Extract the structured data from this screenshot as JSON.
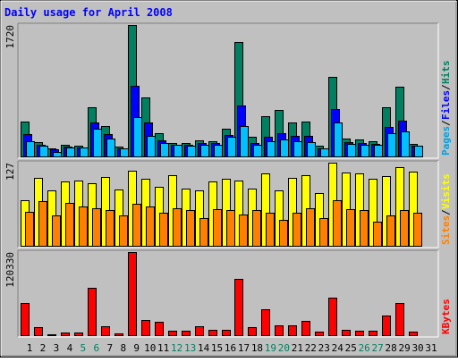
{
  "chart_data": {
    "type": "bar",
    "title": "Daily usage for April 2008",
    "categories": [
      "1",
      "2",
      "3",
      "4",
      "5",
      "6",
      "7",
      "8",
      "9",
      "10",
      "11",
      "12",
      "13",
      "14",
      "15",
      "16",
      "17",
      "18",
      "19",
      "20",
      "21",
      "22",
      "23",
      "24",
      "25",
      "26",
      "27",
      "28",
      "29",
      "30",
      "31"
    ],
    "weekend_days": [
      "5",
      "6",
      "12",
      "13",
      "19",
      "20",
      "26",
      "27"
    ],
    "panels": [
      {
        "id": "hits",
        "ymax_label": "1720",
        "ymax": 1720,
        "axis_labels": [
          {
            "text": "Pages",
            "color": "#00a0e0"
          },
          {
            "text": "Files",
            "color": "#0000ff"
          },
          {
            "text": "Hits",
            "color": "#008060"
          }
        ],
        "series": [
          {
            "name": "Hits",
            "color": "#008060",
            "values": [
              460,
              190,
              110,
              150,
              140,
              640,
              400,
              130,
              1720,
              770,
              310,
              180,
              170,
              210,
              200,
              360,
              1500,
              260,
              530,
              610,
              450,
              460,
              140,
              1040,
              230,
              220,
              200,
              640,
              910,
              160,
              0
            ]
          },
          {
            "name": "Files",
            "color": "#0000ff",
            "values": [
              290,
              150,
              90,
              130,
              120,
              450,
              290,
              110,
              920,
              440,
              210,
              150,
              150,
              170,
              170,
              280,
              670,
              180,
              260,
              310,
              270,
              270,
              110,
              620,
              190,
              180,
              160,
              390,
              470,
              140,
              0
            ]
          },
          {
            "name": "Pages",
            "color": "#00c0ff",
            "values": [
              200,
              140,
              60,
              120,
              120,
              360,
              230,
              100,
              520,
              270,
              170,
              150,
              140,
              150,
              150,
              260,
              400,
              150,
              200,
              220,
              200,
              190,
              100,
              440,
              160,
              150,
              150,
              300,
              330,
              140,
              0
            ]
          }
        ]
      },
      {
        "id": "visits",
        "ymax_label": "127",
        "ymax": 127,
        "axis_labels": [
          {
            "text": "Sites",
            "color": "#ff8000"
          },
          {
            "text": "Visits",
            "color": "#ffff00"
          }
        ],
        "series": [
          {
            "name": "Visits",
            "color": "#ffff00",
            "values": [
              70,
              104,
              85,
              98,
              100,
              95,
              105,
              86,
              115,
              102,
              90,
              108,
              88,
              85,
              98,
              102,
              100,
              88,
              110,
              84,
              104,
              108,
              80,
              127,
              112,
              110,
              103,
              106,
              120,
              114,
              0
            ]
          },
          {
            "name": "Sites",
            "color": "#ff8000",
            "values": [
              52,
              68,
              47,
              66,
              60,
              57,
              55,
              47,
              64,
              60,
              50,
              57,
              54,
              42,
              56,
              55,
              48,
              55,
              50,
              39,
              50,
              58,
              43,
              69,
              56,
              54,
              37,
              46,
              55,
              51,
              0
            ]
          }
        ]
      },
      {
        "id": "kbytes",
        "ymax_label": "120330",
        "ymax": 120330,
        "axis_labels": [
          {
            "text": "KBytes",
            "color": "#ff0000"
          }
        ],
        "series": [
          {
            "name": "KBytes",
            "color": "#ff0000",
            "values": [
              46000,
              12000,
              1000,
              4000,
              4000,
              68000,
              13000,
              3000,
              120330,
              22000,
              19000,
              7000,
              7000,
              13000,
              8000,
              8000,
              81000,
              12000,
              38000,
              14000,
              14000,
              21000,
              5000,
              54000,
              8000,
              7000,
              7000,
              29000,
              46000,
              5000,
              0
            ]
          }
        ]
      }
    ]
  }
}
